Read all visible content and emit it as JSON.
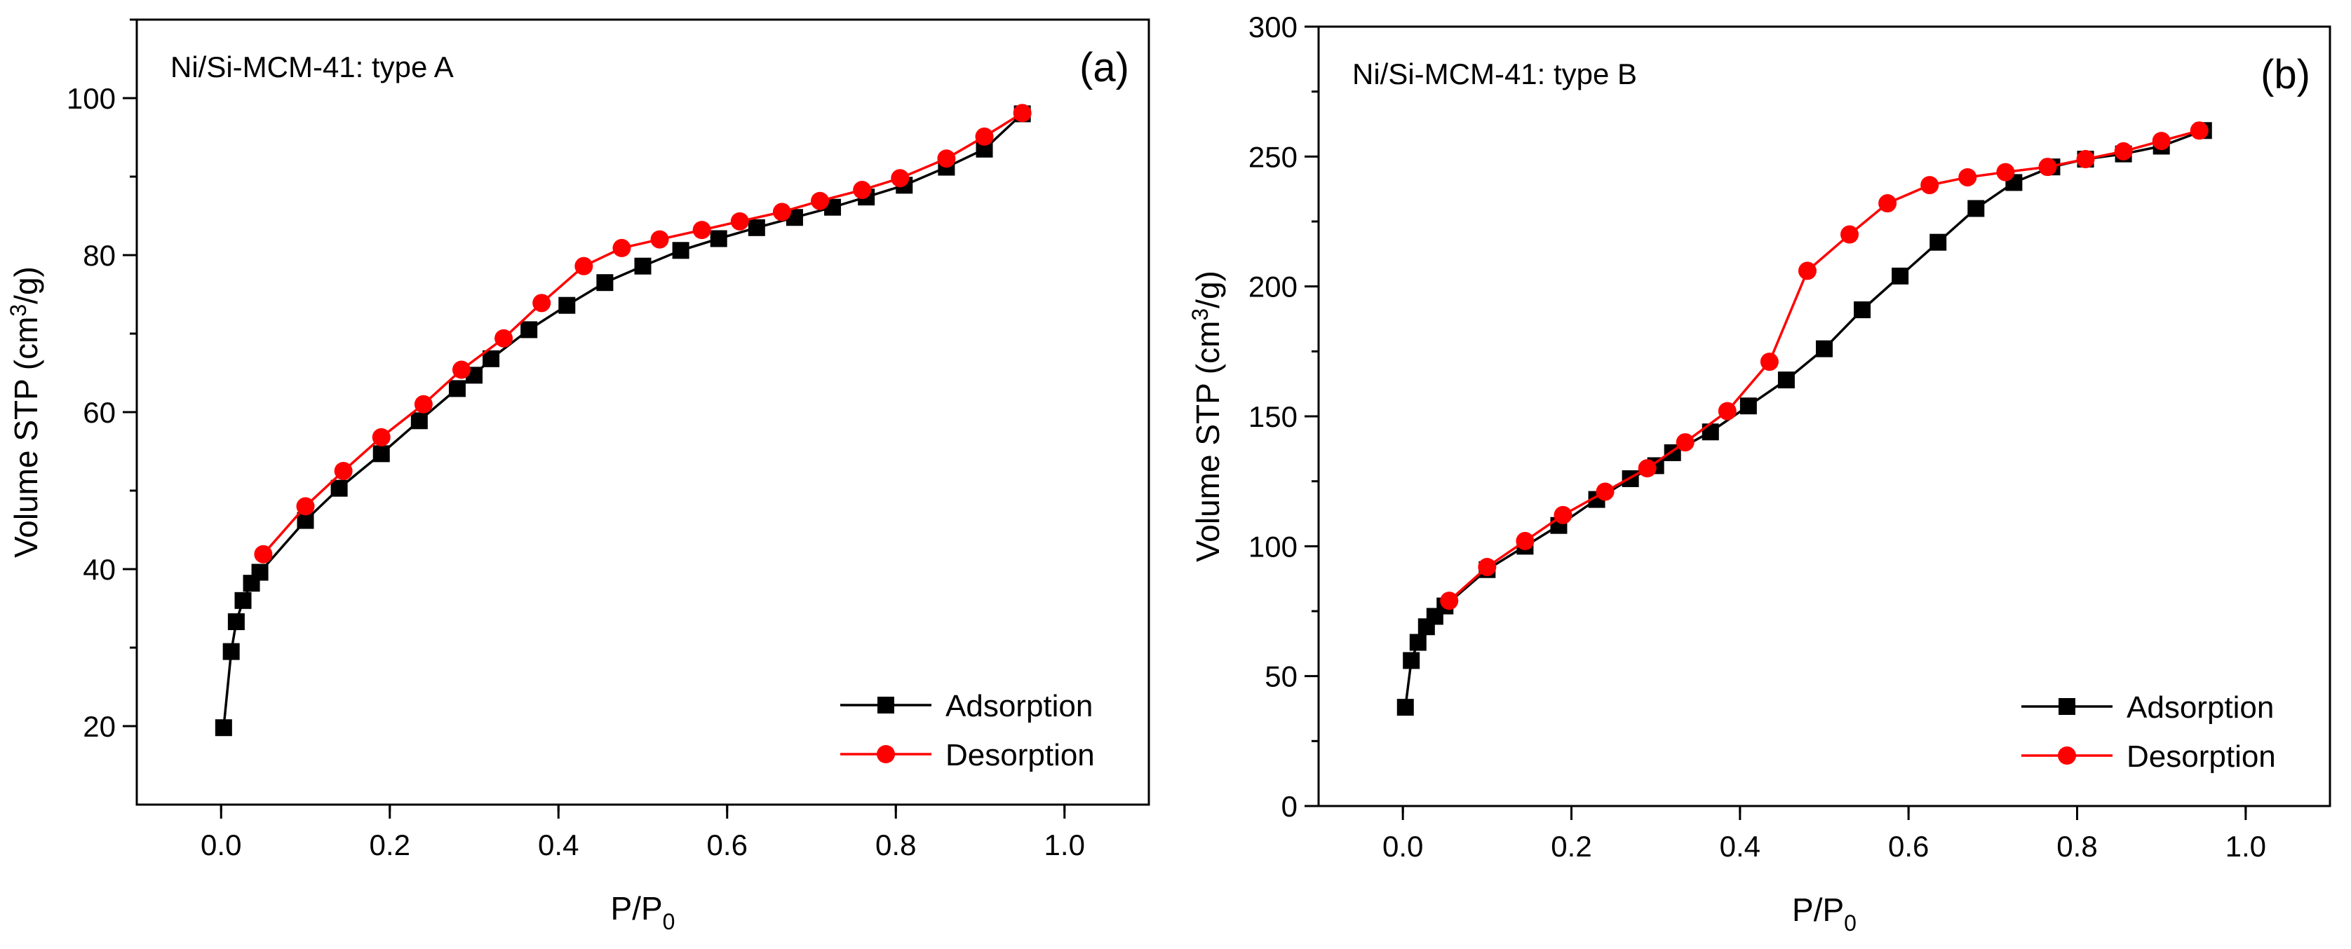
{
  "chart_data": [
    {
      "type": "line",
      "title": "Ni/Si-MCM-41: type A",
      "panel_label": "(a)",
      "xlabel": "P/P",
      "xlabel_sub": "0",
      "ylabel_pre": "Volume STP (cm",
      "ylabel_sup": "3",
      "ylabel_post": "/g)",
      "xlim": [
        -0.1,
        1.1
      ],
      "ylim": [
        10,
        110
      ],
      "xticks": [
        0.0,
        0.2,
        0.4,
        0.6,
        0.8,
        1.0
      ],
      "xtick_labels": [
        "0.0",
        "0.2",
        "0.4",
        "0.6",
        "0.8",
        "1.0"
      ],
      "yticks": [
        20,
        40,
        60,
        80,
        100
      ],
      "ytick_labels": [
        "20",
        "40",
        "60",
        "80",
        "100"
      ],
      "grid": false,
      "legend_position": "bottom-right",
      "series": [
        {
          "name": "Adsorption",
          "color": "#000000",
          "marker": "square",
          "x": [
            0.003,
            0.012,
            0.018,
            0.026,
            0.036,
            0.046,
            0.1,
            0.14,
            0.19,
            0.235,
            0.28,
            0.3,
            0.32,
            0.365,
            0.41,
            0.455,
            0.5,
            0.545,
            0.59,
            0.635,
            0.68,
            0.725,
            0.765,
            0.81,
            0.86,
            0.905,
            0.95
          ],
          "y": [
            19.8,
            29.5,
            33.3,
            36.0,
            38.2,
            39.6,
            46.2,
            50.3,
            54.7,
            58.9,
            63.0,
            64.7,
            66.8,
            70.5,
            73.6,
            76.5,
            78.6,
            80.6,
            82.1,
            83.5,
            84.8,
            86.1,
            87.4,
            88.9,
            91.2,
            93.5,
            98.0
          ]
        },
        {
          "name": "Desorption",
          "color": "#ff0000",
          "marker": "circle",
          "x": [
            0.05,
            0.1,
            0.145,
            0.19,
            0.24,
            0.285,
            0.335,
            0.38,
            0.43,
            0.475,
            0.52,
            0.57,
            0.615,
            0.665,
            0.71,
            0.76,
            0.805,
            0.86,
            0.905,
            0.95
          ],
          "y": [
            41.9,
            48.0,
            52.5,
            56.8,
            61.0,
            65.4,
            69.4,
            73.9,
            78.6,
            80.9,
            82.0,
            83.2,
            84.3,
            85.5,
            86.9,
            88.3,
            89.8,
            92.3,
            95.1,
            98.1
          ]
        }
      ]
    },
    {
      "type": "line",
      "title": "Ni/Si-MCM-41: type B",
      "panel_label": "(b)",
      "xlabel": "P/P",
      "xlabel_sub": "0",
      "ylabel_pre": "Volume STP (cm",
      "ylabel_sup": "3",
      "ylabel_post": "/g)",
      "xlim": [
        -0.1,
        1.1
      ],
      "ylim": [
        0,
        300
      ],
      "xticks": [
        0.0,
        0.2,
        0.4,
        0.6,
        0.8,
        1.0
      ],
      "xtick_labels": [
        "0.0",
        "0.2",
        "0.4",
        "0.6",
        "0.8",
        "1.0"
      ],
      "yticks": [
        0,
        50,
        100,
        150,
        200,
        250,
        300
      ],
      "ytick_labels": [
        "0",
        "50",
        "100",
        "150",
        "200",
        "250",
        "300"
      ],
      "grid": false,
      "legend_position": "bottom-right",
      "series": [
        {
          "name": "Adsorption",
          "color": "#000000",
          "marker": "square",
          "x": [
            0.003,
            0.01,
            0.018,
            0.028,
            0.038,
            0.05,
            0.1,
            0.145,
            0.185,
            0.23,
            0.27,
            0.3,
            0.32,
            0.365,
            0.41,
            0.455,
            0.5,
            0.545,
            0.59,
            0.635,
            0.68,
            0.725,
            0.77,
            0.81,
            0.855,
            0.9,
            0.95
          ],
          "y": [
            38,
            56,
            63,
            69,
            73,
            77,
            91,
            100,
            108,
            118,
            126,
            131,
            136,
            144,
            154,
            164,
            176,
            191,
            204,
            217,
            230,
            240,
            246,
            249,
            251,
            254,
            260
          ]
        },
        {
          "name": "Desorption",
          "color": "#ff0000",
          "marker": "circle",
          "x": [
            0.055,
            0.1,
            0.145,
            0.19,
            0.24,
            0.29,
            0.335,
            0.385,
            0.435,
            0.48,
            0.53,
            0.575,
            0.625,
            0.67,
            0.715,
            0.765,
            0.81,
            0.855,
            0.9,
            0.945
          ],
          "y": [
            79,
            92,
            102,
            112,
            121,
            130,
            140,
            152,
            171,
            206,
            220,
            232,
            239,
            242,
            244,
            246,
            249,
            252,
            256,
            260
          ]
        }
      ]
    }
  ]
}
